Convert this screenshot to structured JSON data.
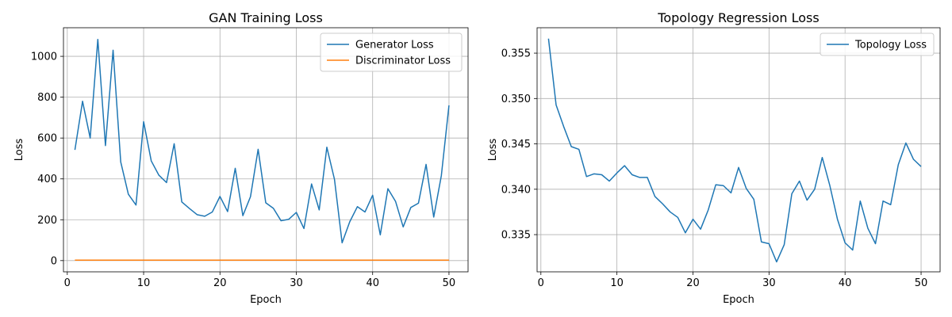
{
  "colors": {
    "generator": "#1f77b4",
    "discriminator": "#ff7f0e",
    "topology": "#1f77b4",
    "grid": "#b0b0b0"
  },
  "chart_data": [
    {
      "type": "line",
      "title": "GAN Training Loss",
      "xlabel": "Epoch",
      "ylabel": "Loss",
      "xlim": [
        -0.5,
        52.5
      ],
      "ylim": [
        -55,
        1140
      ],
      "xticks": [
        0,
        10,
        20,
        30,
        40,
        50
      ],
      "yticks": [
        0,
        200,
        400,
        600,
        800,
        1000
      ],
      "grid": true,
      "legend_position": "top-right",
      "x": [
        1,
        2,
        3,
        4,
        5,
        6,
        7,
        8,
        9,
        10,
        11,
        12,
        13,
        14,
        15,
        16,
        17,
        18,
        19,
        20,
        21,
        22,
        23,
        24,
        25,
        26,
        27,
        28,
        29,
        30,
        31,
        32,
        33,
        34,
        35,
        36,
        37,
        38,
        39,
        40,
        41,
        42,
        43,
        44,
        45,
        46,
        47,
        48,
        49,
        50
      ],
      "series": [
        {
          "name": "Generator Loss",
          "color_key": "generator",
          "values": [
            542,
            780,
            600,
            1083,
            563,
            1030,
            483,
            325,
            272,
            680,
            488,
            418,
            382,
            572,
            287,
            255,
            225,
            217,
            238,
            314,
            240,
            452,
            220,
            313,
            545,
            283,
            256,
            195,
            202,
            236,
            157,
            375,
            248,
            555,
            398,
            87,
            190,
            264,
            238,
            320,
            126,
            352,
            290,
            165,
            260,
            281,
            471,
            213,
            416,
            760
          ]
        },
        {
          "name": "Discriminator Loss",
          "color_key": "discriminator",
          "values": [
            2,
            2,
            2,
            2,
            2,
            2,
            2,
            2,
            2,
            2,
            2,
            2,
            2,
            2,
            2,
            2,
            2,
            2,
            2,
            2,
            2,
            2,
            2,
            2,
            2,
            2,
            2,
            2,
            2,
            2,
            2,
            2,
            2,
            2,
            2,
            2,
            2,
            2,
            2,
            2,
            2,
            2,
            2,
            2,
            2,
            2,
            2,
            2,
            2,
            2
          ]
        }
      ]
    },
    {
      "type": "line",
      "title": "Topology Regression Loss",
      "xlabel": "Epoch",
      "ylabel": "Loss",
      "xlim": [
        -0.5,
        52.5
      ],
      "ylim": [
        0.3309,
        0.3578
      ],
      "xticks": [
        0,
        10,
        20,
        30,
        40,
        50
      ],
      "yticks": [
        0.335,
        0.34,
        0.345,
        0.35,
        0.355
      ],
      "ytick_labels": [
        "0.335",
        "0.340",
        "0.345",
        "0.350",
        "0.355"
      ],
      "grid": true,
      "legend_position": "top-right",
      "x": [
        1,
        2,
        3,
        4,
        5,
        6,
        7,
        8,
        9,
        10,
        11,
        12,
        13,
        14,
        15,
        16,
        17,
        18,
        19,
        20,
        21,
        22,
        23,
        24,
        25,
        26,
        27,
        28,
        29,
        30,
        31,
        32,
        33,
        34,
        35,
        36,
        37,
        38,
        39,
        40,
        41,
        42,
        43,
        44,
        45,
        46,
        47,
        48,
        49,
        50
      ],
      "series": [
        {
          "name": "Topology Loss",
          "color_key": "topology",
          "values": [
            0.3566,
            0.3493,
            0.3469,
            0.3447,
            0.3444,
            0.3414,
            0.3417,
            0.3416,
            0.3409,
            0.3418,
            0.3426,
            0.3416,
            0.3413,
            0.3413,
            0.3392,
            0.3384,
            0.3375,
            0.3369,
            0.3352,
            0.3367,
            0.3356,
            0.3377,
            0.3405,
            0.3404,
            0.3396,
            0.3424,
            0.3401,
            0.3389,
            0.3342,
            0.334,
            0.332,
            0.3339,
            0.3395,
            0.3409,
            0.3388,
            0.34,
            0.3435,
            0.3404,
            0.3367,
            0.3341,
            0.3333,
            0.3387,
            0.3357,
            0.334,
            0.3387,
            0.3383,
            0.3427,
            0.3451,
            0.3433,
            0.3425
          ]
        }
      ]
    }
  ]
}
